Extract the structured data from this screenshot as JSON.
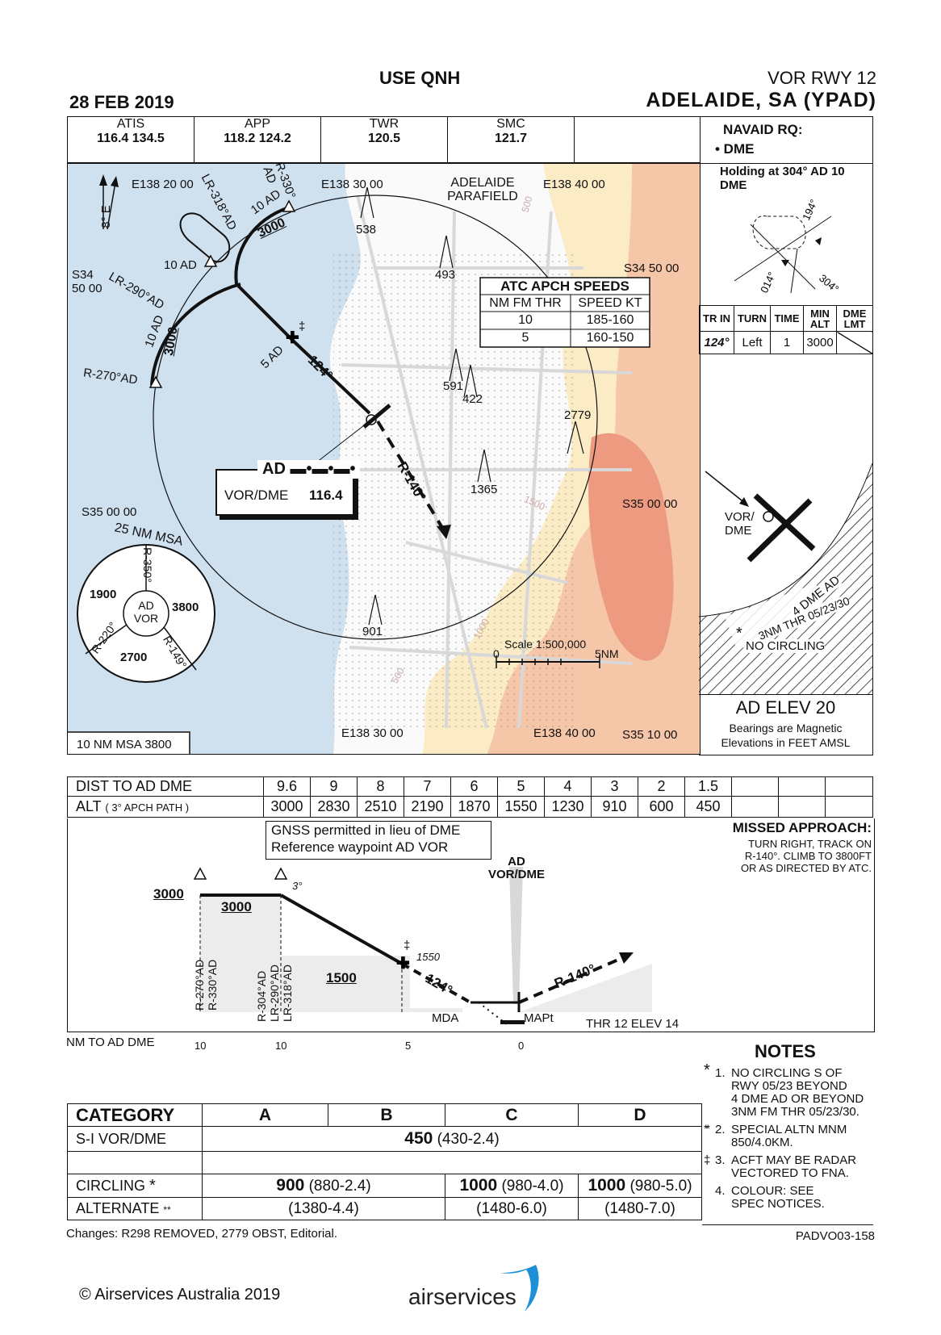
{
  "header": {
    "use_qnh": "USE QNH",
    "date": "28 FEB 2019",
    "procedure": "VOR RWY 12",
    "airport": "ADELAIDE, SA (YPAD)"
  },
  "comms": [
    {
      "name": "ATIS",
      "value": "116.4  134.5"
    },
    {
      "name": "APP",
      "value": "118.2  124.2"
    },
    {
      "name": "TWR",
      "value": "120.5"
    },
    {
      "name": "SMC",
      "value": "121.7"
    }
  ],
  "navaid": {
    "title": "NAVAID RQ:",
    "item": "• DME"
  },
  "holding": {
    "title": "Holding at 304° AD 10 DME",
    "labels": [
      "194°",
      "014°",
      "304°"
    ],
    "headers": [
      "TR IN",
      "TURN",
      "TIME",
      "MIN ALT",
      "DME LMT"
    ],
    "row": [
      "124°",
      "Left",
      "1",
      "3000"
    ]
  },
  "plan": {
    "coords": [
      "E138 20 00",
      "E138 30 00",
      "E138 40 00",
      "S34 50 00",
      "S35 00 00",
      "S35 00 00",
      "S34 50 00",
      "S35 10 00",
      "E138 30 00",
      "E138 40 00"
    ],
    "parafield": "ADELAIDE PARAFIELD",
    "north": "8° E",
    "obstacles": [
      "538",
      "493",
      "591",
      "422",
      "2779",
      "1365",
      "901"
    ],
    "contours": [
      "500",
      "1500",
      "1000",
      "500"
    ],
    "radials": {
      "lr318": "LR-318°AD",
      "r330": "R-330° AD",
      "lr290": "LR-290°AD",
      "r270": "R-270°AD",
      "r140": "R-140°"
    },
    "fixes": {
      "ten_ad_a": "10 AD",
      "ten_ad_b": "10 AD",
      "ten_ad_c": "10 AD",
      "five_ad": "5 AD",
      "course": "124°",
      "alt_a": "3000",
      "alt_b": "3000",
      "dagger": "‡"
    },
    "atc_speeds": {
      "title": "ATC APCH SPEEDS",
      "headers": [
        "NM FM THR",
        "SPEED KT"
      ],
      "rows": [
        [
          "10",
          "185-160"
        ],
        [
          "5",
          "160-150"
        ]
      ]
    },
    "navaid_box": {
      "ident": "AD ▬•▬•▬•",
      "type": "VOR/DME",
      "freq": "116.4"
    },
    "msa": {
      "title": "25 NM  MSA",
      "center": "AD VOR",
      "sectors": [
        "1900",
        "3800",
        "2700"
      ],
      "radials": [
        "R-350°",
        "R-220°",
        "R-149°"
      ],
      "box": "10 NM MSA 3800"
    },
    "scale": {
      "title": "Scale 1:500,000",
      "left": "0",
      "right": "5NM"
    }
  },
  "aerodrome": {
    "vor_label": "VOR/ DME",
    "dme_label": "4 DME AD",
    "thr_label": "3NM THR 05/23/30",
    "no_circ": "NO CIRCLING",
    "star": "*",
    "elev": "AD ELEV 20",
    "bearings": "Bearings are Magnetic",
    "elevations": "Elevations in FEET AMSL"
  },
  "dist_table": {
    "label1": "DIST TO AD DME",
    "label2": "ALT",
    "label2_small": "( 3° APCH PATH )",
    "dist": [
      "9.6",
      "9",
      "8",
      "7",
      "6",
      "5",
      "4",
      "3",
      "2",
      "1.5"
    ],
    "alt": [
      "3000",
      "2830",
      "2510",
      "2190",
      "1870",
      "1550",
      "1230",
      "910",
      "600",
      "450"
    ]
  },
  "profile": {
    "gnss": [
      "GNSS permitted in lieu of DME",
      "Reference waypoint AD VOR"
    ],
    "missed_title": "MISSED APPROACH:",
    "missed_text": [
      "TURN RIGHT, TRACK ON",
      "R-140°. CLIMB TO 3800FT",
      "OR AS DIRECTED BY ATC."
    ],
    "vor": [
      "AD",
      "VOR/DME"
    ],
    "alts": {
      "a": "3000",
      "b": "3000",
      "c": "1500",
      "fix": "1550",
      "three_deg": "3°",
      "dagger": "‡"
    },
    "radials_a": [
      "R-270°AD",
      "R-330°AD"
    ],
    "radials_b": [
      "R-304°AD",
      "LR-290°AD",
      "LR-318°AD"
    ],
    "course": "124°",
    "missed_radial": "R-140°",
    "mda": "MDA",
    "mapt": "MAPt",
    "thr": "THR 12 ELEV 14",
    "axis_label": "NM TO AD DME",
    "ticks": [
      "10",
      "10",
      "5",
      "0"
    ]
  },
  "notes": {
    "title": "NOTES",
    "items": [
      {
        "mark": "*",
        "num": "1.",
        "text": [
          "NO CIRCLING  S OF",
          "RWY 05/23 BEYOND",
          "4 DME AD OR BEYOND",
          "3NM FM THR 05/23/30."
        ]
      },
      {
        "mark": "**",
        "num": "2.",
        "text": [
          "SPECIAL ALTN MNM",
          "850/4.0KM."
        ]
      },
      {
        "mark": "‡",
        "num": "3.",
        "text": [
          "ACFT MAY BE RADAR",
          "VECTORED TO FNA."
        ]
      },
      {
        "mark": "",
        "num": "4.",
        "text": [
          "COLOUR: SEE",
          "SPEC NOTICES."
        ]
      }
    ]
  },
  "minima": {
    "headers": [
      "CATEGORY",
      "A",
      "B",
      "C",
      "D"
    ],
    "si_label": "S-I  VOR/DME",
    "si_value": "450",
    "si_paren": "(430-2.4)",
    "circ_label": "CIRCLING",
    "circ_ab": "900",
    "circ_ab_paren": "(880-2.4)",
    "circ_c": "1000",
    "circ_c_paren": "(980-4.0)",
    "circ_d": "1000",
    "circ_d_paren": "(980-5.0)",
    "alt_label": "ALTERNATE",
    "alt_ab": "(1380-4.4)",
    "alt_c": "(1480-6.0)",
    "alt_d": "(1480-7.0)",
    "star1": "*",
    "star2": "**"
  },
  "footer": {
    "changes": "Changes: R298 REMOVED, 2779 OBST, Editorial.",
    "code": "PADVO03-158",
    "copyright": "© Airservices Australia 2019",
    "logo": "airservices"
  },
  "colors": {
    "sea": "#cfe0ef",
    "land": "#ffffff",
    "terrain1": "#fbecc6",
    "terrain2": "#f6c6a8",
    "terrain3": "#ee9a80",
    "mask": "#f0f0f0"
  }
}
